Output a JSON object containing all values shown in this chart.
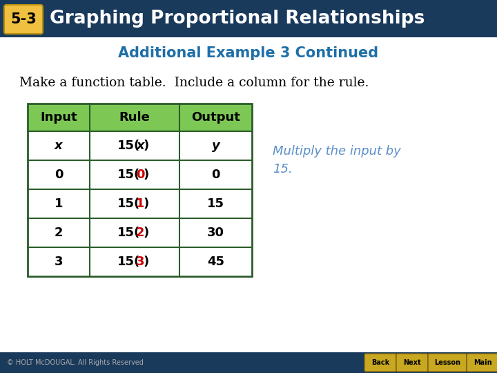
{
  "title_badge": "5-3",
  "title_text": "Graphing Proportional Relationships",
  "header_bg": "#1a3a5c",
  "header_text_color": "#ffffff",
  "subtitle": "Additional Example 3 Continued",
  "subtitle_color": "#1e6fa8",
  "body_text": "Make a function table.  Include a column for the rule.",
  "body_text_color": "#000000",
  "table_header_bg": "#7dc855",
  "table_border_color": "#2a5d2a",
  "table_headers": [
    "Input",
    "Rule",
    "Output"
  ],
  "table_rows": [
    {
      "input": "x",
      "rule_pre": "15(",
      "rule_mid": "x",
      "rule_mid_color": "#000000",
      "rule_mid_italic": true,
      "rule_post": ")",
      "output": "y",
      "output_italic": true
    },
    {
      "input": "0",
      "rule_pre": "15(",
      "rule_mid": "0",
      "rule_mid_color": "#cc0000",
      "rule_mid_italic": false,
      "rule_post": ")",
      "output": "0",
      "output_italic": false
    },
    {
      "input": "1",
      "rule_pre": "15(",
      "rule_mid": "1",
      "rule_mid_color": "#cc0000",
      "rule_mid_italic": false,
      "rule_post": ")",
      "output": "15",
      "output_italic": false
    },
    {
      "input": "2",
      "rule_pre": "15(",
      "rule_mid": "2",
      "rule_mid_color": "#cc0000",
      "rule_mid_italic": false,
      "rule_post": ")",
      "output": "30",
      "output_italic": false
    },
    {
      "input": "3",
      "rule_pre": "15(",
      "rule_mid": "3",
      "rule_mid_color": "#cc0000",
      "rule_mid_italic": false,
      "rule_post": ")",
      "output": "45",
      "output_italic": false
    }
  ],
  "annotation": "Multiply the input by\n15.",
  "annotation_color": "#5b8fc9",
  "footer_bg": "#1a3a5c",
  "footer_text": "© HOLT McDOUGAL. All Rights Reserved",
  "footer_text_color": "#aaaaaa",
  "bg_color": "#ffffff",
  "badge_bg": "#f0c040",
  "badge_text_color": "#000000"
}
